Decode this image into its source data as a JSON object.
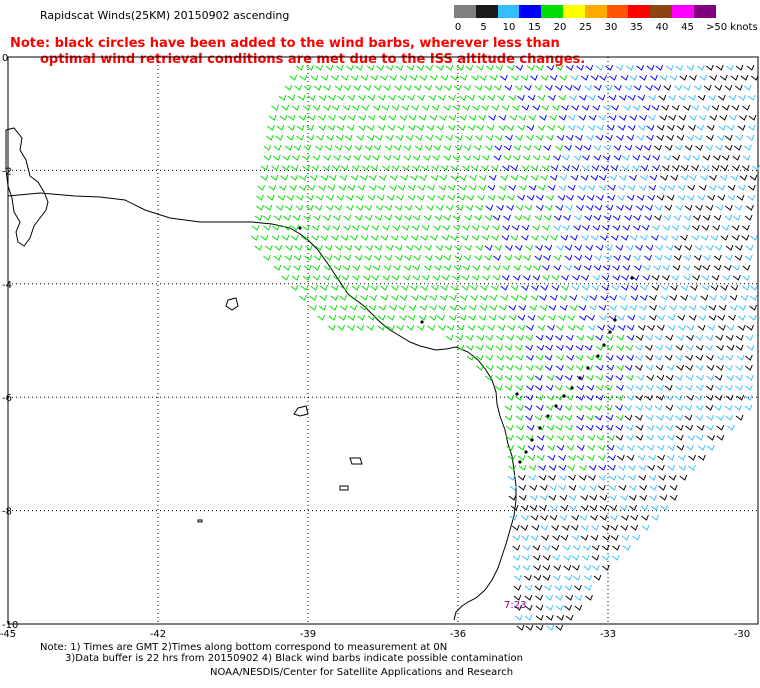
{
  "title": "Rapidscat Winds(25KM) 20150902 ascending",
  "legend": {
    "labels": [
      "0",
      "5",
      "10",
      "15",
      "20",
      "25",
      "30",
      "35",
      "40",
      "45",
      ">50 knots"
    ],
    "colors": [
      "#7f7f7f",
      "#1a1a1a",
      "#33bfff",
      "#0000ff",
      "#00dd00",
      "#ffff00",
      "#ffaa00",
      "#ff5500",
      "#ff0000",
      "#8b4513",
      "#ff00ff",
      "#800080"
    ]
  },
  "note": {
    "line1": "Note: black circles have been added to the wind barbs, wherever less than",
    "line2": "optimal wind retrieval conditions are met due to the ISS altitude changes."
  },
  "axes": {
    "x_labels": [
      "-45",
      "-42",
      "-39",
      "-36",
      "-33",
      "-30"
    ],
    "y_labels": [
      "0",
      "-2",
      "-4",
      "-6",
      "-8",
      "-10"
    ]
  },
  "time_label": "7:23",
  "footer": {
    "line1": "Note: 1) Times are GMT 2)Times along bottom correspond to measurement at 0N",
    "line2": "3)Data buffer is 22 hrs from 20150902 4) Black wind barbs indicate possible contamination",
    "line3": "NOAA/NESDIS/Center for Satellite Applications and Research"
  },
  "map_data": {
    "lon_range": [
      -45,
      -30
    ],
    "lat_range": [
      -10,
      0
    ],
    "grid": "dotted every 3° lon / 2° lat",
    "barb_colors": {
      "black": "#000000",
      "green": "#00dd00",
      "blue": "#0000ff",
      "light_blue": "#33bfff"
    }
  }
}
